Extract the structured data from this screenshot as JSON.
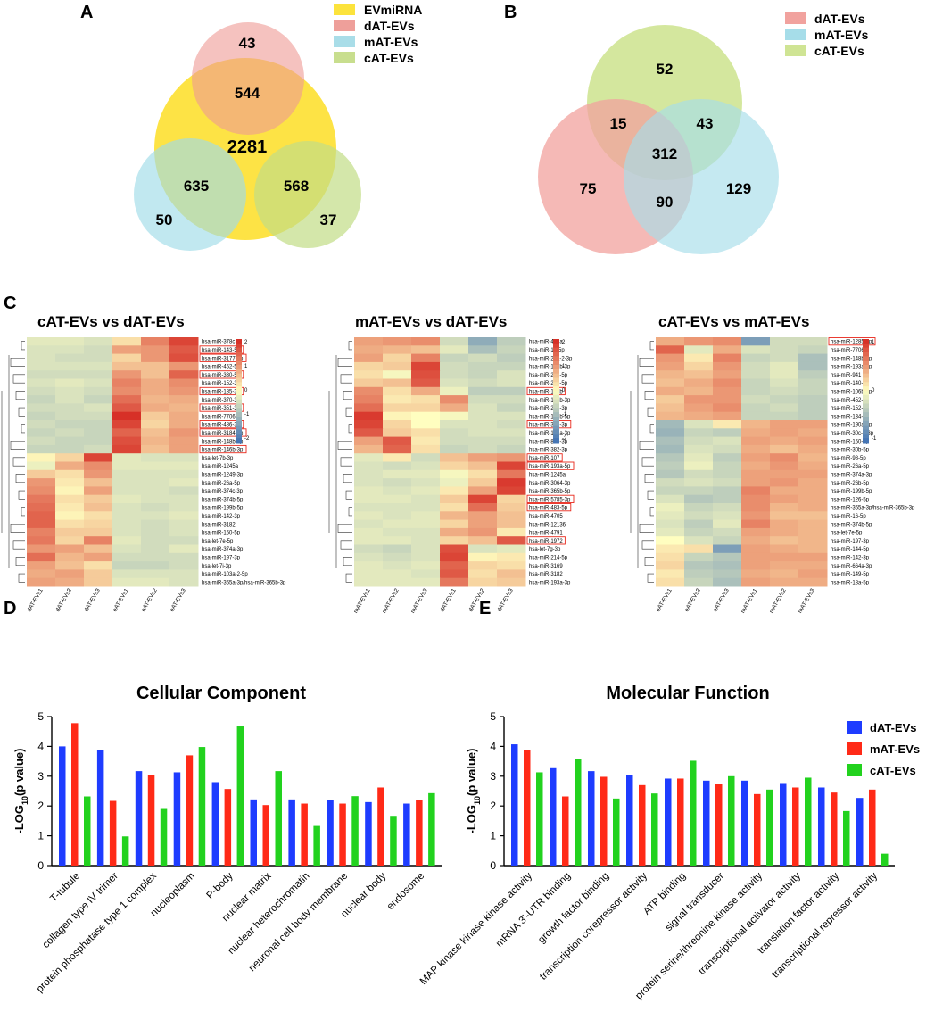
{
  "panels": {
    "a": "A",
    "b": "B",
    "c": "C",
    "d": "D",
    "e": "E"
  },
  "vennA": {
    "legend": [
      {
        "label": "EVmiRNA",
        "color": "#fce33c"
      },
      {
        "label": "dAT-EVs",
        "color": "#ee9f9a"
      },
      {
        "label": "mAT-EVs",
        "color": "#a9dde8"
      },
      {
        "label": "cAT-EVs",
        "color": "#c8de8e"
      }
    ],
    "counts": {
      "d_only": "43",
      "ev_d": "544",
      "ev_only": "2281",
      "ev_m": "635",
      "ev_c": "568",
      "m_only": "50",
      "c_only": "37"
    }
  },
  "vennB": {
    "legend": [
      {
        "label": "dAT-EVs",
        "color": "#f1a29e"
      },
      {
        "label": "mAT-EVs",
        "color": "#a6dde9"
      },
      {
        "label": "cAT-EVs",
        "color": "#cfe494"
      }
    ],
    "counts": {
      "c_only": "52",
      "d_c": "15",
      "c_m": "43",
      "all": "312",
      "d_only": "75",
      "d_m": "90",
      "m_only": "129"
    }
  },
  "heatmaps": [
    {
      "title": "cAT-EVs vs dAT-EVs",
      "cols": [
        "dAT-EVs1",
        "dAT-EVs2",
        "dAT-EVs3",
        "eAT-EVs1",
        "eAT-EVs2",
        "eAT-EVs3"
      ],
      "rows": [
        "hsa-miR-378c",
        "hsa-miR-143-5p",
        "hsa-miR-3177-3p",
        "hsa-miR-452-5p",
        "hsa-miR-330-5p",
        "hsa-miR-152-3p",
        "hsa-miR-185-3p",
        "hsa-miR-370-3p",
        "hsa-miR-351-3p",
        "hsa-miR-7706",
        "hsa-miR-486-3p",
        "hsa-miR-3184-5p",
        "hsa-miR-148b-3p",
        "hsa-miR-146b-3p",
        "hsa-let-7b-3p",
        "hsa-miR-1245a",
        "hsa-miR-1249-3p",
        "hsa-miR-26a-5p",
        "hsa-miR-374c-3p",
        "hsa-miR-374b-5p",
        "hsa-miR-199b-5p",
        "hsa-miR-142-3p",
        "hsa-miR-3182",
        "hsa-miR-150-5p",
        "hsa-let-7e-5p",
        "hsa-miR-374a-3p",
        "hsa-miR-197-3p",
        "hsa-let-7i-3p",
        "hsa-miR-103a-2-5p",
        "hsa-miR-365a-3p/hsa-miR-365b-3p"
      ],
      "boxed": [
        1,
        2,
        4,
        6,
        8,
        10,
        11,
        13
      ],
      "vals": [
        [
          -0.3,
          -0.3,
          -0.4,
          0.3,
          1.2,
          1.8
        ],
        [
          -0.4,
          -0.4,
          -0.5,
          0.9,
          1.0,
          1.6
        ],
        [
          -0.4,
          -0.5,
          -0.5,
          0.4,
          1.0,
          1.7
        ],
        [
          -0.4,
          -0.4,
          -0.4,
          0.6,
          0.6,
          1.0
        ],
        [
          -0.5,
          -0.5,
          -0.5,
          1.0,
          0.6,
          1.5
        ],
        [
          -0.4,
          -0.3,
          -0.4,
          1.2,
          0.8,
          1.1
        ],
        [
          -0.5,
          -0.4,
          -0.5,
          1.1,
          0.8,
          1.0
        ],
        [
          -0.6,
          -0.4,
          -0.6,
          1.4,
          0.7,
          0.8
        ],
        [
          -0.5,
          -0.5,
          -0.4,
          1.6,
          0.8,
          0.7
        ],
        [
          -0.6,
          -0.5,
          -0.5,
          2.0,
          0.5,
          0.8
        ],
        [
          -0.5,
          -0.6,
          -0.6,
          1.8,
          0.4,
          0.8
        ],
        [
          -0.6,
          -0.5,
          -0.6,
          1.5,
          0.6,
          1.0
        ],
        [
          -0.5,
          -0.6,
          -0.6,
          1.7,
          0.7,
          0.9
        ],
        [
          -0.6,
          -0.6,
          -0.5,
          1.8,
          0.6,
          0.9
        ],
        [
          0.1,
          0.4,
          1.8,
          -0.3,
          -0.4,
          -0.4
        ],
        [
          -0.2,
          0.8,
          1.1,
          -0.3,
          -0.3,
          -0.3
        ],
        [
          0.5,
          0.3,
          1.0,
          -0.4,
          -0.4,
          -0.4
        ],
        [
          1.0,
          0.2,
          0.6,
          -0.4,
          -0.4,
          -0.3
        ],
        [
          1.1,
          0.1,
          0.9,
          -0.4,
          -0.4,
          -0.5
        ],
        [
          1.3,
          0.3,
          0.5,
          -0.3,
          -0.4,
          -0.4
        ],
        [
          1.4,
          0.2,
          0.6,
          -0.4,
          -0.5,
          -0.4
        ],
        [
          1.5,
          0.1,
          0.3,
          -0.4,
          -0.4,
          -0.3
        ],
        [
          1.5,
          0.3,
          0.4,
          -0.4,
          -0.5,
          -0.4
        ],
        [
          1.2,
          0.5,
          0.5,
          -0.4,
          -0.5,
          -0.4
        ],
        [
          1.3,
          0.4,
          1.2,
          -0.3,
          -0.5,
          -0.5
        ],
        [
          1.0,
          0.9,
          0.6,
          -0.4,
          -0.5,
          -0.3
        ],
        [
          1.4,
          0.7,
          0.9,
          -0.5,
          -0.5,
          -0.5
        ],
        [
          0.9,
          0.6,
          0.3,
          -0.6,
          -0.6,
          -0.5
        ],
        [
          0.8,
          0.9,
          0.5,
          -0.4,
          -0.4,
          -0.4
        ],
        [
          0.9,
          0.8,
          0.5,
          -0.3,
          -0.3,
          -0.4
        ]
      ]
    },
    {
      "title": "mAT-EVs vs dAT-EVs",
      "cols": [
        "mAT-EVs1",
        "mAT-EVs2",
        "mAT-EVs3",
        "dAT-EVs1",
        "dAT-EVs2",
        "dAT-EVs3"
      ],
      "rows": [
        "hsa-miR-451a",
        "hsa-miR-16-5p",
        "hsa-miR-26a-2-3p",
        "hsa-miR-181b-3p",
        "hsa-miR-221-5p",
        "hsa-miR-20b-5p",
        "hsa-miR-103b",
        "hsa-miR-193b-3p",
        "hsa-miR-221-3p",
        "hsa-miR-199b-5p",
        "hsa-miR-361-3p",
        "hsa-miR-181a-3p",
        "hsa-miR-889-3p",
        "hsa-miR-382-3p",
        "hsa-miR-107",
        "hsa-miR-193a-5p",
        "hsa-miR-1245a",
        "hsa-miR-3064-3p",
        "hsa-miR-365b-5p",
        "hsa-miR-5785-3p",
        "hsa-miR-483-5p",
        "hsa-miR-4705",
        "hsa-miR-12136",
        "hsa-miR-4791",
        "hsa-miR-1972",
        "hsa-let-7g-3p",
        "hsa-miR-214-5p",
        "hsa-miR-3169",
        "hsa-miR-3182",
        "hsa-miR-193a-3p"
      ],
      "boxed": [
        6,
        10,
        14,
        15,
        19,
        20,
        24
      ],
      "vals": [
        [
          0.9,
          1.0,
          1.1,
          -0.5,
          -1.2,
          -0.7
        ],
        [
          0.8,
          0.7,
          0.6,
          -0.3,
          -0.9,
          -0.6
        ],
        [
          0.9,
          0.4,
          1.2,
          -0.6,
          -0.5,
          -0.7
        ],
        [
          0.4,
          0.5,
          1.8,
          -0.5,
          -0.6,
          -0.6
        ],
        [
          0.3,
          -0.1,
          1.7,
          -0.5,
          -0.6,
          -0.4
        ],
        [
          0.5,
          0.6,
          1.6,
          -0.4,
          -0.5,
          -0.4
        ],
        [
          1.1,
          0.3,
          0.8,
          -0.2,
          -0.7,
          -0.7
        ],
        [
          1.2,
          0.2,
          0.3,
          1.1,
          -0.5,
          -0.5
        ],
        [
          1.4,
          0.4,
          0.4,
          0.8,
          -0.4,
          -0.6
        ],
        [
          1.9,
          0.1,
          0.0,
          -0.1,
          -0.4,
          -0.4
        ],
        [
          1.8,
          0.4,
          0.0,
          -0.4,
          -0.4,
          -0.5
        ],
        [
          1.6,
          0.5,
          0.3,
          -0.5,
          -0.4,
          -0.4
        ],
        [
          0.9,
          1.6,
          0.2,
          -0.5,
          -0.5,
          -0.5
        ],
        [
          0.7,
          1.5,
          0.3,
          -0.6,
          -0.5,
          -0.6
        ],
        [
          -0.3,
          0.2,
          -0.5,
          0.6,
          0.9,
          1.0
        ],
        [
          -0.4,
          -0.5,
          -0.4,
          0.4,
          0.6,
          1.8
        ],
        [
          -0.4,
          -0.3,
          -0.3,
          -0.1,
          0.3,
          1.3
        ],
        [
          -0.4,
          -0.5,
          -0.4,
          -0.2,
          0.5,
          1.9
        ],
        [
          -0.3,
          -0.4,
          -0.3,
          0.2,
          0.9,
          1.8
        ],
        [
          -0.3,
          -0.3,
          -0.4,
          0.5,
          1.8,
          0.4
        ],
        [
          -0.4,
          -0.4,
          -0.4,
          0.3,
          1.4,
          0.5
        ],
        [
          -0.3,
          -0.4,
          -0.3,
          0.7,
          0.9,
          0.6
        ],
        [
          -0.4,
          -0.3,
          -0.3,
          0.4,
          0.9,
          0.6
        ],
        [
          -0.3,
          -0.4,
          -0.4,
          0.8,
          1.0,
          0.2
        ],
        [
          -0.3,
          -0.3,
          -0.4,
          0.4,
          0.6,
          1.6
        ],
        [
          -0.5,
          -0.6,
          -0.4,
          1.7,
          -0.4,
          -0.3
        ],
        [
          -0.4,
          -0.5,
          -0.4,
          1.8,
          0.1,
          0.2
        ],
        [
          -0.3,
          -0.4,
          -0.3,
          1.5,
          0.4,
          0.3
        ],
        [
          -0.3,
          -0.3,
          -0.4,
          1.6,
          0.3,
          0.6
        ],
        [
          -0.3,
          -0.3,
          -0.3,
          1.3,
          0.4,
          0.5
        ]
      ]
    },
    {
      "title": "cAT-EVs vs mAT-EVs",
      "cols": [
        "eAT-EVs1",
        "eAT-EVs2",
        "eAT-EVs3",
        "mAT-EVs1",
        "mAT-EVs2",
        "mAT-EVs3"
      ],
      "rows": [
        "hsa-miR-1285-3p",
        "hsa-miR-7706",
        "hsa-miR-148b-3p",
        "hsa-miR-193a-5p",
        "hsa-miR-941",
        "hsa-miR-140-3p",
        "hsa-miR-106b-3p",
        "hsa-miR-452-5p",
        "hsa-miR-152-3p",
        "hsa-miR-134-5p",
        "hsa-miR-190a-5p",
        "hsa-miR-30c-2-3p",
        "hsa-miR-150-5p",
        "hsa-miR-30b-5p",
        "hsa-miR-98-5p",
        "hsa-miR-26a-5p",
        "hsa-miR-374a-3p",
        "hsa-miR-26b-5p",
        "hsa-miR-199b-5p",
        "hsa-miR-126-5p",
        "hsa-miR-365a-3p/hsa-miR-365b-3p",
        "hsa-miR-16-5p",
        "hsa-miR-374b-5p",
        "hsa-let-7e-5p",
        "hsa-miR-197-3p",
        "hsa-miR-144-5p",
        "hsa-miR-142-3p",
        "hsa-miR-664a-3p",
        "hsa-miR-149-5p",
        "hsa-miR-18a-5p"
      ],
      "boxed": [
        0
      ],
      "vals": [
        [
          0.8,
          1.0,
          1.1,
          -1.4,
          -0.5,
          -0.5
        ],
        [
          1.5,
          -0.3,
          0.8,
          -0.4,
          -0.5,
          -0.6
        ],
        [
          1.0,
          0.2,
          1.2,
          -0.6,
          -0.5,
          -0.9
        ],
        [
          0.9,
          0.4,
          1.0,
          -0.5,
          -0.3,
          -0.9
        ],
        [
          0.7,
          0.6,
          0.9,
          -0.5,
          -0.3,
          -0.7
        ],
        [
          0.6,
          0.8,
          1.1,
          -0.6,
          -0.4,
          -0.6
        ],
        [
          0.8,
          0.7,
          1.0,
          -0.6,
          -0.5,
          -0.6
        ],
        [
          0.5,
          1.0,
          1.0,
          -0.5,
          -0.6,
          -0.7
        ],
        [
          0.6,
          0.9,
          1.1,
          -0.6,
          -0.5,
          -0.7
        ],
        [
          0.7,
          0.8,
          0.9,
          -0.6,
          -0.6,
          -0.7
        ],
        [
          -1.0,
          -0.4,
          0.2,
          0.7,
          0.9,
          0.9
        ],
        [
          -1.1,
          -0.6,
          -0.7,
          0.8,
          0.9,
          0.8
        ],
        [
          -0.9,
          -0.5,
          -0.4,
          0.9,
          0.8,
          0.9
        ],
        [
          -1.0,
          -0.4,
          -0.5,
          0.8,
          0.6,
          0.8
        ],
        [
          -0.8,
          -0.3,
          -0.7,
          0.9,
          1.1,
          0.7
        ],
        [
          -0.7,
          -0.2,
          -0.6,
          0.8,
          1.0,
          0.8
        ],
        [
          -0.8,
          -0.5,
          -0.6,
          0.9,
          0.9,
          0.9
        ],
        [
          -0.5,
          -0.4,
          -0.5,
          0.9,
          1.0,
          0.8
        ],
        [
          -0.6,
          -0.6,
          -0.7,
          1.2,
          0.8,
          0.8
        ],
        [
          -0.4,
          -0.8,
          -0.7,
          1.1,
          0.9,
          0.8
        ],
        [
          -0.2,
          -0.6,
          -0.5,
          1.1,
          0.7,
          0.8
        ],
        [
          -0.3,
          -0.5,
          -0.4,
          1.0,
          0.6,
          0.6
        ],
        [
          -0.4,
          -0.7,
          -0.3,
          1.2,
          0.8,
          0.7
        ],
        [
          -0.3,
          -0.6,
          -0.5,
          0.9,
          0.8,
          0.7
        ],
        [
          0.0,
          -0.4,
          -0.6,
          0.8,
          0.6,
          0.7
        ],
        [
          0.2,
          0.3,
          -1.4,
          0.9,
          0.8,
          0.7
        ],
        [
          0.3,
          -0.6,
          -0.8,
          0.9,
          0.9,
          0.9
        ],
        [
          0.4,
          -0.8,
          -0.9,
          0.9,
          0.8,
          0.8
        ],
        [
          0.2,
          -0.7,
          -0.8,
          0.8,
          0.7,
          0.9
        ],
        [
          0.3,
          -0.6,
          -0.9,
          0.9,
          0.8,
          0.8
        ]
      ]
    }
  ],
  "scale": {
    "ticks": [
      "2",
      "1",
      "0",
      "-1",
      "-2"
    ]
  },
  "scale3": {
    "ticks": [
      "1",
      "0",
      "-1"
    ]
  },
  "chart_data": [
    {
      "type": "bar",
      "title": "Cellular Component",
      "xlabel": "",
      "ylabel": "-LOG10(p value)",
      "ylabel_main": "-LOG",
      "ylabel_sub": "10",
      "ylabel_rest": "(p value)",
      "ylim": [
        0,
        5
      ],
      "yticks": [
        "0",
        "1",
        "2",
        "3",
        "4",
        "5"
      ],
      "categories": [
        "T-tubule",
        "collagen type IV trimer",
        "protein phosphatase type 1 complex",
        "nucleoplasm",
        "P-body",
        "nuclear matrix",
        "nuclear heterochromatin",
        "neuronal cell body membrane",
        "nuclear body",
        "endosome"
      ],
      "series": [
        {
          "name": "dAT-EVs",
          "color": "#1e3cff",
          "values": [
            4.0,
            3.88,
            3.17,
            3.13,
            2.8,
            2.22,
            2.22,
            2.2,
            2.13,
            2.08
          ]
        },
        {
          "name": "mAT-EVs",
          "color": "#ff2a17",
          "values": [
            4.78,
            2.17,
            3.03,
            3.7,
            2.57,
            2.03,
            2.08,
            2.08,
            2.62,
            2.2
          ]
        },
        {
          "name": "cAT-EVs",
          "color": "#22d21e",
          "values": [
            2.32,
            0.98,
            1.93,
            3.98,
            4.67,
            3.17,
            1.33,
            2.33,
            1.67,
            2.43
          ]
        }
      ]
    },
    {
      "type": "bar",
      "title": "Molecular Function",
      "xlabel": "",
      "ylabel": "-LOG10(p value)",
      "ylabel_main": "-LOG",
      "ylabel_sub": "10",
      "ylabel_rest": "(p value)",
      "ylim": [
        0,
        5
      ],
      "yticks": [
        "0",
        "1",
        "2",
        "3",
        "4",
        "5"
      ],
      "categories": [
        "MAP kinase kinase kinase activity",
        "mRNA 3'-UTR binding",
        "growth factor binding",
        "transcription corepressor activity",
        "ATP binding",
        "signal transducer",
        "protein serine/threonine kinase activity",
        "transcriptional activator activity",
        "translation factor activity",
        "transcriptional repressor activity"
      ],
      "series": [
        {
          "name": "dAT-EVs",
          "color": "#1e3cff",
          "values": [
            4.07,
            3.27,
            3.17,
            3.05,
            2.92,
            2.85,
            2.85,
            2.77,
            2.62,
            2.27
          ]
        },
        {
          "name": "mAT-EVs",
          "color": "#ff2a17",
          "values": [
            3.87,
            2.32,
            2.98,
            2.7,
            2.92,
            2.75,
            2.4,
            2.62,
            2.45,
            2.55
          ]
        },
        {
          "name": "cAT-EVs",
          "color": "#22d21e",
          "values": [
            3.13,
            3.58,
            2.25,
            2.42,
            3.52,
            3.0,
            2.55,
            2.95,
            1.83,
            0.4
          ]
        }
      ],
      "legend": "top-right"
    }
  ]
}
